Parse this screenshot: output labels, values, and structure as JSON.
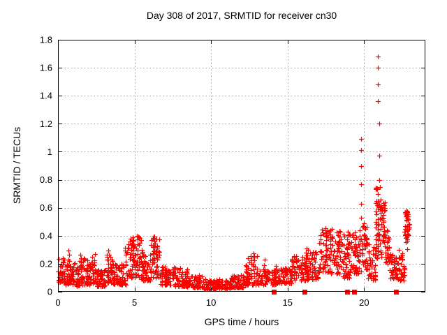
{
  "title": "Day 308 of 2017, SRMTID for receiver cn30",
  "axes": {
    "xlabel": "GPS time / hours",
    "ylabel": "SRMTID / TECUs",
    "xticks": [
      0,
      5,
      10,
      15,
      20
    ],
    "xtick_labels": [
      "0",
      "5",
      "10",
      "15",
      "20"
    ],
    "yticks": [
      0,
      0.2,
      0.4,
      0.6,
      0.8,
      1,
      1.2,
      1.4,
      1.6,
      1.8
    ],
    "ytick_labels": [
      "0",
      "0.2",
      "0.4",
      "0.6",
      "0.8",
      "1",
      "1.2",
      "1.4",
      "1.6",
      "1.8"
    ]
  },
  "colors": {
    "marker": "#ff0000",
    "flag": "#ff0000",
    "grid": "#9a9a9a",
    "axis": "#000000",
    "background": "#ffffff",
    "text": "#000000"
  },
  "chart_data": {
    "type": "scatter",
    "title": "Day 308 of 2017, SRMTID for receiver cn30",
    "xlabel": "GPS time / hours",
    "ylabel": "SRMTID / TECUs",
    "xlim": [
      0,
      24
    ],
    "ylim": [
      0,
      1.8
    ],
    "grid": true,
    "legend": false,
    "marker": "plus",
    "marker_color": "#ff0000",
    "summary": "Dense SRMTID scatter: 0.05-0.30 TECU hours 0-4; bursts to 0.40-0.43 near hours 5 and 6.3; quiet 0.02-0.12 hours 8-12; rise after hour 15; band 0.15-0.47 hours 17-20; isolated column to 1.09 at 19.8 h; main spike to 1.68 at 20.9-21.0 h decaying by 21.6 h; low 0.1-0.3 to 22.6 h; final cluster 0.30-0.58 at 22.8-23.0 h; flagged baseline squares.",
    "series": [
      {
        "name": "SRMTID",
        "style": "plus",
        "color": "#ff0000",
        "bands": [
          [
            0.0,
            0.45,
            0.07,
            0.24,
            40,
            1.3
          ],
          [
            0.45,
            1.05,
            0.05,
            0.2,
            48,
            1.5
          ],
          [
            1.05,
            1.65,
            0.04,
            0.22,
            48,
            1.5
          ],
          [
            1.65,
            2.45,
            0.05,
            0.24,
            60,
            1.5
          ],
          [
            2.45,
            3.05,
            0.04,
            0.16,
            45,
            1.4
          ],
          [
            3.05,
            3.65,
            0.06,
            0.27,
            50,
            1.5
          ],
          [
            3.65,
            4.45,
            0.05,
            0.2,
            58,
            1.5
          ],
          [
            4.45,
            5.45,
            0.1,
            0.4,
            75,
            1.3
          ],
          [
            5.45,
            6.05,
            0.08,
            0.3,
            48,
            1.4
          ],
          [
            6.05,
            6.65,
            0.1,
            0.4,
            48,
            1.3
          ],
          [
            6.65,
            7.45,
            0.05,
            0.18,
            55,
            1.5
          ],
          [
            7.45,
            8.45,
            0.04,
            0.17,
            60,
            1.6
          ],
          [
            8.45,
            9.45,
            0.03,
            0.12,
            65,
            1.5
          ],
          [
            9.45,
            11.25,
            0.02,
            0.09,
            110,
            1.4
          ],
          [
            11.25,
            12.25,
            0.03,
            0.12,
            65,
            1.5
          ],
          [
            12.25,
            13.05,
            0.05,
            0.26,
            55,
            1.6
          ],
          [
            13.05,
            14.25,
            0.05,
            0.16,
            75,
            1.5
          ],
          [
            14.25,
            15.25,
            0.06,
            0.17,
            65,
            1.4
          ],
          [
            15.25,
            16.25,
            0.08,
            0.26,
            65,
            1.4
          ],
          [
            16.25,
            17.05,
            0.08,
            0.3,
            58,
            1.4
          ],
          [
            17.05,
            18.45,
            0.13,
            0.45,
            95,
            1.2
          ],
          [
            18.45,
            19.25,
            0.1,
            0.42,
            58,
            1.3
          ],
          [
            19.25,
            19.85,
            0.13,
            0.42,
            42,
            1.2
          ],
          [
            19.85,
            20.25,
            0.15,
            0.48,
            36,
            1.2
          ],
          [
            20.25,
            20.75,
            0.08,
            0.35,
            36,
            1.3
          ],
          [
            20.75,
            21.15,
            0.22,
            0.75,
            48,
            1.0
          ],
          [
            21.15,
            21.4,
            0.32,
            0.65,
            28,
            1.0
          ],
          [
            21.4,
            21.65,
            0.2,
            0.45,
            22,
            1.2
          ],
          [
            21.65,
            22.05,
            0.09,
            0.28,
            30,
            1.5
          ],
          [
            22.05,
            22.65,
            0.08,
            0.3,
            45,
            1.5
          ],
          [
            22.65,
            22.95,
            0.3,
            0.58,
            35,
            0.7
          ]
        ],
        "spike_columns": [
          [
            0.7,
            0.18,
            0.3,
            5
          ],
          [
            1.5,
            0.16,
            0.28,
            5
          ],
          [
            2.2,
            0.15,
            0.26,
            4
          ],
          [
            2.4,
            0.15,
            0.28,
            4
          ],
          [
            3.3,
            0.16,
            0.3,
            5
          ],
          [
            4.4,
            0.18,
            0.34,
            5
          ],
          [
            4.9,
            0.2,
            0.4,
            6
          ],
          [
            5.2,
            0.2,
            0.43,
            6
          ],
          [
            5.45,
            0.18,
            0.38,
            5
          ],
          [
            6.3,
            0.2,
            0.42,
            6
          ],
          [
            6.45,
            0.18,
            0.4,
            5
          ],
          [
            7.6,
            0.1,
            0.19,
            4
          ],
          [
            12.8,
            0.12,
            0.3,
            6
          ],
          [
            13.5,
            0.1,
            0.24,
            4
          ],
          [
            14.2,
            0.1,
            0.2,
            4
          ],
          [
            16.2,
            0.15,
            0.33,
            5
          ],
          [
            17.5,
            0.3,
            0.47,
            6
          ],
          [
            17.8,
            0.3,
            0.46,
            5
          ],
          [
            18.3,
            0.28,
            0.43,
            4
          ],
          [
            18.95,
            0.3,
            0.45,
            4
          ],
          [
            19.4,
            0.25,
            0.45,
            5
          ],
          [
            19.7,
            0.3,
            0.45,
            4
          ],
          [
            20.0,
            0.3,
            0.5,
            4
          ],
          [
            20.9,
            0.3,
            0.72,
            8
          ],
          [
            22.8,
            0.3,
            0.5,
            5
          ]
        ],
        "outliers": [
          [
            19.8,
            0.53
          ],
          [
            19.8,
            0.63
          ],
          [
            19.8,
            0.77
          ],
          [
            19.82,
            0.9
          ],
          [
            19.81,
            1.01
          ],
          [
            19.8,
            1.09
          ],
          [
            20.9,
            1.68
          ],
          [
            20.9,
            1.6
          ],
          [
            20.9,
            1.48
          ],
          [
            20.9,
            1.36
          ],
          [
            20.98,
            1.2
          ],
          [
            20.98,
            0.97
          ],
          [
            21.0,
            0.8
          ],
          [
            21.02,
            0.75
          ],
          [
            22.78,
            0.58
          ],
          [
            22.8,
            0.57
          ],
          [
            22.82,
            0.56
          ],
          [
            22.76,
            0.55
          ],
          [
            22.84,
            0.54
          ],
          [
            22.8,
            0.53
          ],
          [
            22.78,
            0.51
          ],
          [
            22.86,
            0.52
          ]
        ]
      },
      {
        "name": "flagged-intervals",
        "style": "filled-square",
        "color": "#ff0000",
        "points": [
          [
            14.1,
            0
          ],
          [
            16.1,
            0
          ],
          [
            18.9,
            0
          ],
          [
            19.35,
            0
          ],
          [
            22.1,
            0
          ]
        ]
      }
    ]
  }
}
